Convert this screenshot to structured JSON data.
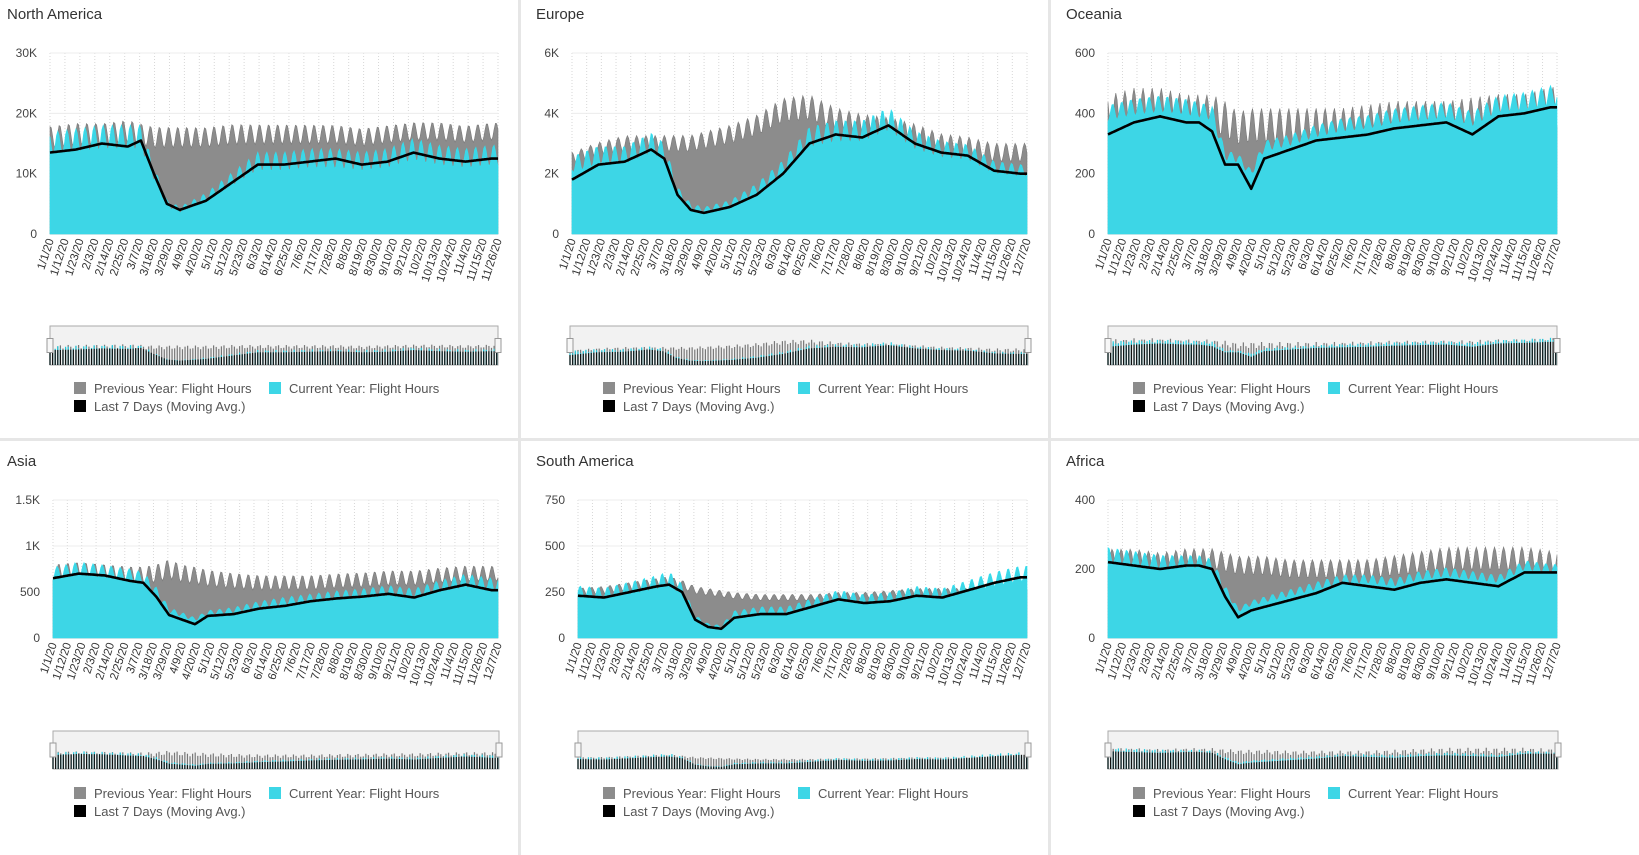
{
  "legend": {
    "prev": "Previous Year: Flight Hours",
    "curr": "Current Year: Flight Hours",
    "avg": "Last 7 Days (Moving Avg.)"
  },
  "colors": {
    "prev": "#8c8c8c",
    "curr": "#3dd6e6",
    "avg": "#000000",
    "grid": "#d7d7d7"
  },
  "chart_data": [
    {
      "type": "area",
      "title": "North America",
      "ylim": [
        0,
        30000
      ],
      "yticks": [
        0,
        10000,
        20000,
        30000
      ],
      "ytick_labels": [
        "0",
        "10K",
        "20K",
        "30K"
      ],
      "xtick_labels": [
        "1/1/20",
        "1/12/20",
        "1/23/20",
        "2/3/20",
        "2/14/20",
        "2/25/20",
        "3/7/20",
        "3/18/20",
        "3/29/20",
        "4/9/20",
        "4/20/20",
        "5/1/20",
        "5/12/20",
        "5/23/20",
        "6/3/20",
        "6/14/20",
        "6/25/20",
        "7/6/20",
        "7/17/20",
        "7/28/20",
        "8/8/20",
        "8/19/20",
        "8/30/20",
        "9/10/20",
        "9/21/20",
        "10/2/20",
        "10/13/20",
        "10/24/20",
        "11/4/20",
        "11/15/20",
        "11/26/20"
      ],
      "x_days": [
        0,
        20,
        40,
        60,
        70,
        80,
        90,
        100,
        120,
        140,
        160,
        180,
        200,
        220,
        240,
        260,
        280,
        300,
        320,
        340
      ],
      "avg7": [
        13500,
        14000,
        15000,
        14500,
        15500,
        10000,
        5000,
        4000,
        5500,
        8500,
        11500,
        11500,
        12000,
        12500,
        11500,
        12000,
        13500,
        12500,
        12000,
        12500
      ],
      "prev": [
        16000,
        16500,
        16500,
        17000,
        16500,
        16000,
        16000,
        16000,
        16000,
        16500,
        16500,
        16500,
        16500,
        16500,
        16000,
        16500,
        17000,
        17000,
        16500,
        17000
      ],
      "curr": [
        15000,
        15500,
        16000,
        16000,
        16000,
        10000,
        5000,
        4000,
        6000,
        9000,
        12000,
        12000,
        12500,
        12500,
        12000,
        12500,
        14000,
        13000,
        12500,
        13000
      ]
    },
    {
      "type": "area",
      "title": "Europe",
      "ylim": [
        0,
        6000
      ],
      "yticks": [
        0,
        2000,
        4000,
        6000
      ],
      "ytick_labels": [
        "0",
        "2K",
        "4K",
        "6K"
      ],
      "xtick_labels": [
        "1/1/20",
        "1/12/20",
        "1/23/20",
        "2/3/20",
        "2/14/20",
        "2/25/20",
        "3/7/20",
        "3/18/20",
        "3/29/20",
        "4/9/20",
        "4/20/20",
        "5/1/20",
        "5/12/20",
        "5/23/20",
        "6/3/20",
        "6/14/20",
        "6/25/20",
        "7/6/20",
        "7/17/20",
        "7/28/20",
        "8/8/20",
        "8/19/20",
        "8/30/20",
        "9/10/20",
        "9/21/20",
        "10/2/20",
        "10/13/20",
        "10/24/20",
        "11/4/20",
        "11/15/20",
        "11/26/20",
        "12/7/20"
      ],
      "x_days": [
        0,
        20,
        40,
        60,
        70,
        80,
        90,
        100,
        120,
        140,
        160,
        180,
        200,
        220,
        240,
        260,
        280,
        300,
        320,
        340
      ],
      "avg7": [
        1800,
        2300,
        2400,
        2800,
        2500,
        1300,
        800,
        700,
        900,
        1300,
        2000,
        3000,
        3300,
        3200,
        3600,
        3000,
        2700,
        2600,
        2100,
        2000
      ],
      "prev": [
        2500,
        2800,
        3000,
        3000,
        3000,
        3000,
        3000,
        3100,
        3300,
        3600,
        4100,
        4200,
        3800,
        3600,
        3500,
        3300,
        3000,
        2900,
        2700,
        2700
      ],
      "curr": [
        2300,
        2600,
        2600,
        3000,
        2700,
        1400,
        900,
        800,
        1000,
        1500,
        2200,
        3200,
        3400,
        3400,
        3800,
        3100,
        2800,
        2700,
        2200,
        2100
      ]
    },
    {
      "type": "area",
      "title": "Oceania",
      "ylim": [
        0,
        600
      ],
      "yticks": [
        0,
        200,
        400,
        600
      ],
      "ytick_labels": [
        "0",
        "200",
        "400",
        "600"
      ],
      "xtick_labels": [
        "1/1/20",
        "1/12/20",
        "1/23/20",
        "2/3/20",
        "2/14/20",
        "2/25/20",
        "3/7/20",
        "3/18/20",
        "3/29/20",
        "4/9/20",
        "4/20/20",
        "5/1/20",
        "5/12/20",
        "5/23/20",
        "6/3/20",
        "6/14/20",
        "6/25/20",
        "7/6/20",
        "7/17/20",
        "7/28/20",
        "8/8/20",
        "8/19/20",
        "8/30/20",
        "9/10/20",
        "9/21/20",
        "10/2/20",
        "10/13/20",
        "10/24/20",
        "11/4/20",
        "11/15/20",
        "11/26/20",
        "12/7/20"
      ],
      "x_days": [
        0,
        20,
        40,
        60,
        70,
        80,
        90,
        100,
        110,
        120,
        140,
        160,
        180,
        200,
        220,
        240,
        260,
        280,
        300,
        320,
        340
      ],
      "avg7": [
        330,
        370,
        390,
        370,
        370,
        340,
        230,
        230,
        150,
        250,
        280,
        310,
        320,
        330,
        350,
        360,
        370,
        330,
        390,
        400,
        420
      ],
      "prev": [
        400,
        420,
        420,
        400,
        400,
        400,
        380,
        350,
        360,
        360,
        360,
        360,
        360,
        370,
        380,
        380,
        380,
        390,
        400,
        400,
        420
      ],
      "curr": [
        400,
        420,
        430,
        420,
        410,
        400,
        260,
        250,
        200,
        290,
        310,
        340,
        360,
        370,
        390,
        400,
        410,
        380,
        430,
        440,
        460
      ]
    },
    {
      "type": "area",
      "title": "Asia",
      "ylim": [
        0,
        1500
      ],
      "yticks": [
        0,
        500,
        1000,
        1500
      ],
      "ytick_labels": [
        "0",
        "500",
        "1K",
        "1.5K"
      ],
      "xtick_labels": [
        "1/1/20",
        "1/12/20",
        "1/23/20",
        "2/3/20",
        "2/14/20",
        "2/25/20",
        "3/7/20",
        "3/18/20",
        "3/29/20",
        "4/9/20",
        "4/20/20",
        "5/1/20",
        "5/12/20",
        "5/23/20",
        "6/3/20",
        "6/14/20",
        "6/25/20",
        "7/6/20",
        "7/17/20",
        "7/28/20",
        "8/8/20",
        "8/19/20",
        "8/30/20",
        "9/10/20",
        "9/21/20",
        "10/2/20",
        "10/13/20",
        "10/24/20",
        "11/4/20",
        "11/15/20",
        "11/26/20",
        "12/7/20"
      ],
      "x_days": [
        0,
        20,
        40,
        60,
        70,
        80,
        90,
        100,
        110,
        120,
        140,
        160,
        180,
        200,
        220,
        240,
        260,
        280,
        300,
        320,
        340
      ],
      "avg7": [
        650,
        700,
        680,
        620,
        600,
        450,
        250,
        200,
        150,
        240,
        260,
        320,
        350,
        400,
        430,
        450,
        480,
        440,
        520,
        580,
        520
      ],
      "prev": [
        700,
        720,
        700,
        680,
        680,
        700,
        750,
        700,
        680,
        650,
        620,
        600,
        600,
        600,
        620,
        630,
        650,
        650,
        680,
        700,
        700
      ],
      "curr": [
        700,
        750,
        720,
        680,
        650,
        500,
        300,
        250,
        200,
        270,
        300,
        360,
        400,
        430,
        460,
        480,
        510,
        480,
        560,
        620,
        580
      ]
    },
    {
      "type": "area",
      "title": "South America",
      "ylim": [
        0,
        750
      ],
      "yticks": [
        0,
        250,
        500,
        750
      ],
      "ytick_labels": [
        "0",
        "250",
        "500",
        "750"
      ],
      "xtick_labels": [
        "1/1/20",
        "1/12/20",
        "1/23/20",
        "2/3/20",
        "2/14/20",
        "2/25/20",
        "3/7/20",
        "3/18/20",
        "3/29/20",
        "4/9/20",
        "4/20/20",
        "5/1/20",
        "5/12/20",
        "5/23/20",
        "6/3/20",
        "6/14/20",
        "6/25/20",
        "7/6/20",
        "7/17/20",
        "7/28/20",
        "8/8/20",
        "8/19/20",
        "8/30/20",
        "9/10/20",
        "9/21/20",
        "10/2/20",
        "10/13/20",
        "10/24/20",
        "11/4/20",
        "11/15/20",
        "11/26/20",
        "12/7/20"
      ],
      "x_days": [
        0,
        20,
        40,
        60,
        70,
        80,
        90,
        100,
        110,
        120,
        140,
        160,
        180,
        200,
        220,
        240,
        260,
        280,
        300,
        320,
        340
      ],
      "avg7": [
        230,
        220,
        250,
        280,
        290,
        250,
        100,
        60,
        50,
        110,
        130,
        130,
        170,
        210,
        190,
        200,
        230,
        220,
        260,
        300,
        330
      ],
      "prev": [
        250,
        260,
        280,
        300,
        310,
        290,
        260,
        250,
        240,
        230,
        220,
        220,
        220,
        230,
        230,
        240,
        250,
        250,
        250,
        260,
        270
      ],
      "curr": [
        250,
        240,
        270,
        300,
        320,
        260,
        110,
        70,
        60,
        130,
        150,
        150,
        190,
        230,
        210,
        220,
        250,
        240,
        280,
        320,
        350
      ]
    },
    {
      "type": "area",
      "title": "Africa",
      "ylim": [
        0,
        400
      ],
      "yticks": [
        0,
        200,
        400
      ],
      "ytick_labels": [
        "0",
        "200",
        "400"
      ],
      "xtick_labels": [
        "1/1/20",
        "1/12/20",
        "1/23/20",
        "2/3/20",
        "2/14/20",
        "2/25/20",
        "3/7/20",
        "3/18/20",
        "3/29/20",
        "4/9/20",
        "4/20/20",
        "5/1/20",
        "5/12/20",
        "5/23/20",
        "6/3/20",
        "6/14/20",
        "6/25/20",
        "7/6/20",
        "7/17/20",
        "7/28/20",
        "8/8/20",
        "8/19/20",
        "8/30/20",
        "9/10/20",
        "9/21/20",
        "10/2/20",
        "10/13/20",
        "10/24/20",
        "11/4/20",
        "11/15/20",
        "11/26/20",
        "12/7/20"
      ],
      "x_days": [
        0,
        20,
        40,
        60,
        70,
        80,
        90,
        100,
        110,
        120,
        140,
        160,
        180,
        200,
        220,
        240,
        260,
        280,
        300,
        320,
        340
      ],
      "avg7": [
        220,
        210,
        200,
        210,
        210,
        200,
        120,
        60,
        80,
        90,
        110,
        130,
        160,
        150,
        140,
        160,
        170,
        160,
        150,
        190,
        190
      ],
      "prev": [
        230,
        230,
        220,
        230,
        230,
        230,
        220,
        210,
        210,
        210,
        200,
        200,
        200,
        200,
        210,
        220,
        230,
        230,
        230,
        230,
        220
      ],
      "curr": [
        240,
        230,
        220,
        220,
        220,
        210,
        140,
        80,
        100,
        110,
        130,
        150,
        170,
        170,
        160,
        180,
        190,
        180,
        170,
        210,
        200
      ]
    }
  ]
}
